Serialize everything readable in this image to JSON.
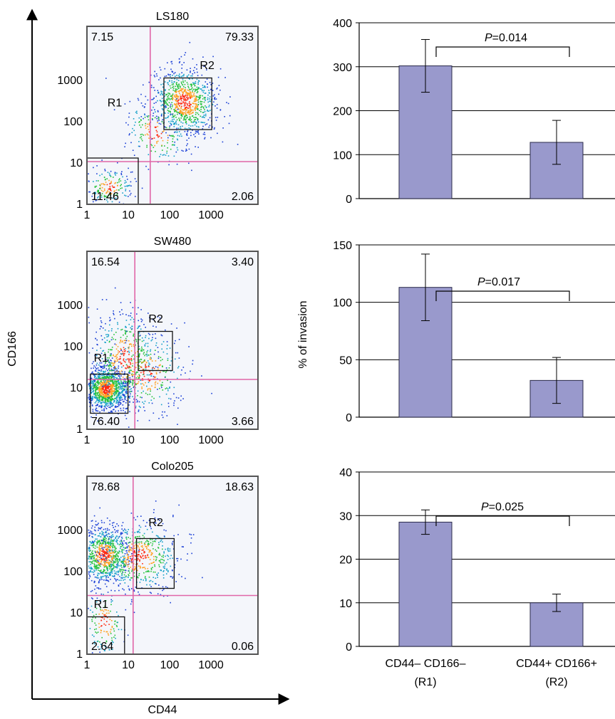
{
  "figure": {
    "axis_label_x": "CD44",
    "axis_label_y": "CD166",
    "ylabel_right": "% of invasion"
  },
  "colors": {
    "bar_fill": "#9999cc",
    "bar_stroke": "#2a2a4a",
    "gate_line": "#e066a8",
    "plot_bg": "#f4f6fb",
    "density_low": "#1a3fd6",
    "density_mid": "#23c23a",
    "density_high": "#ff2a10"
  },
  "chart_data": [
    {
      "type": "scatter",
      "title": "LS180",
      "x_ticks": [
        "1",
        "10",
        "100",
        "1000"
      ],
      "y_ticks": [
        "1",
        "10",
        "100",
        "1000"
      ],
      "scale": "log",
      "quadrants": {
        "top_left": "7.15",
        "top_right": "79.33",
        "bottom_left": "11.46",
        "bottom_right": "2.06"
      },
      "gates": [
        {
          "label": "R1"
        },
        {
          "label": "R2"
        }
      ]
    },
    {
      "type": "scatter",
      "title": "SW480",
      "x_ticks": [
        "1",
        "10",
        "100",
        "1000"
      ],
      "y_ticks": [
        "1",
        "10",
        "100",
        "1000"
      ],
      "scale": "log",
      "quadrants": {
        "top_left": "16.54",
        "top_right": "3.40",
        "bottom_left": "76.40",
        "bottom_right": "3.66"
      },
      "gates": [
        {
          "label": "R1"
        },
        {
          "label": "R2"
        }
      ]
    },
    {
      "type": "scatter",
      "title": "Colo205",
      "x_ticks": [
        "1",
        "10",
        "100",
        "1000"
      ],
      "y_ticks": [
        "1",
        "10",
        "100",
        "1000"
      ],
      "scale": "log",
      "quadrants": {
        "top_left": "78.68",
        "top_right": "18.63",
        "bottom_left": "2.64",
        "bottom_right": "0.06"
      },
      "gates": [
        {
          "label": "R1"
        },
        {
          "label": "R2"
        }
      ]
    },
    {
      "type": "bar",
      "categories": [
        "CD44– CD166– (R1)",
        "CD44+ CD166+ (R2)"
      ],
      "values": [
        302,
        128
      ],
      "errors": [
        60,
        50
      ],
      "ylim": [
        0,
        400
      ],
      "yticks": [
        0,
        100,
        200,
        300,
        400
      ],
      "pvalue_prefix": "P",
      "pvalue_text": "=0.014"
    },
    {
      "type": "bar",
      "categories": [
        "CD44– CD166– (R1)",
        "CD44+ CD166+ (R2)"
      ],
      "values": [
        113,
        32
      ],
      "errors": [
        29,
        20
      ],
      "ylim": [
        0,
        150
      ],
      "yticks": [
        0,
        50,
        100,
        150
      ],
      "pvalue_prefix": "P",
      "pvalue_text": "=0.017"
    },
    {
      "type": "bar",
      "categories": [
        "CD44– CD166– (R1)",
        "CD44+ CD166+ (R2)"
      ],
      "values": [
        28.5,
        10
      ],
      "errors": [
        2.8,
        2
      ],
      "ylim": [
        0,
        40
      ],
      "yticks": [
        0,
        10,
        20,
        30,
        40
      ],
      "pvalue_prefix": "P",
      "pvalue_text": "=0.025"
    }
  ],
  "xcategory_labels": [
    {
      "line1": "CD44– CD166–",
      "line2": "(R1)"
    },
    {
      "line1": "CD44+ CD166+",
      "line2": "(R2)"
    }
  ]
}
